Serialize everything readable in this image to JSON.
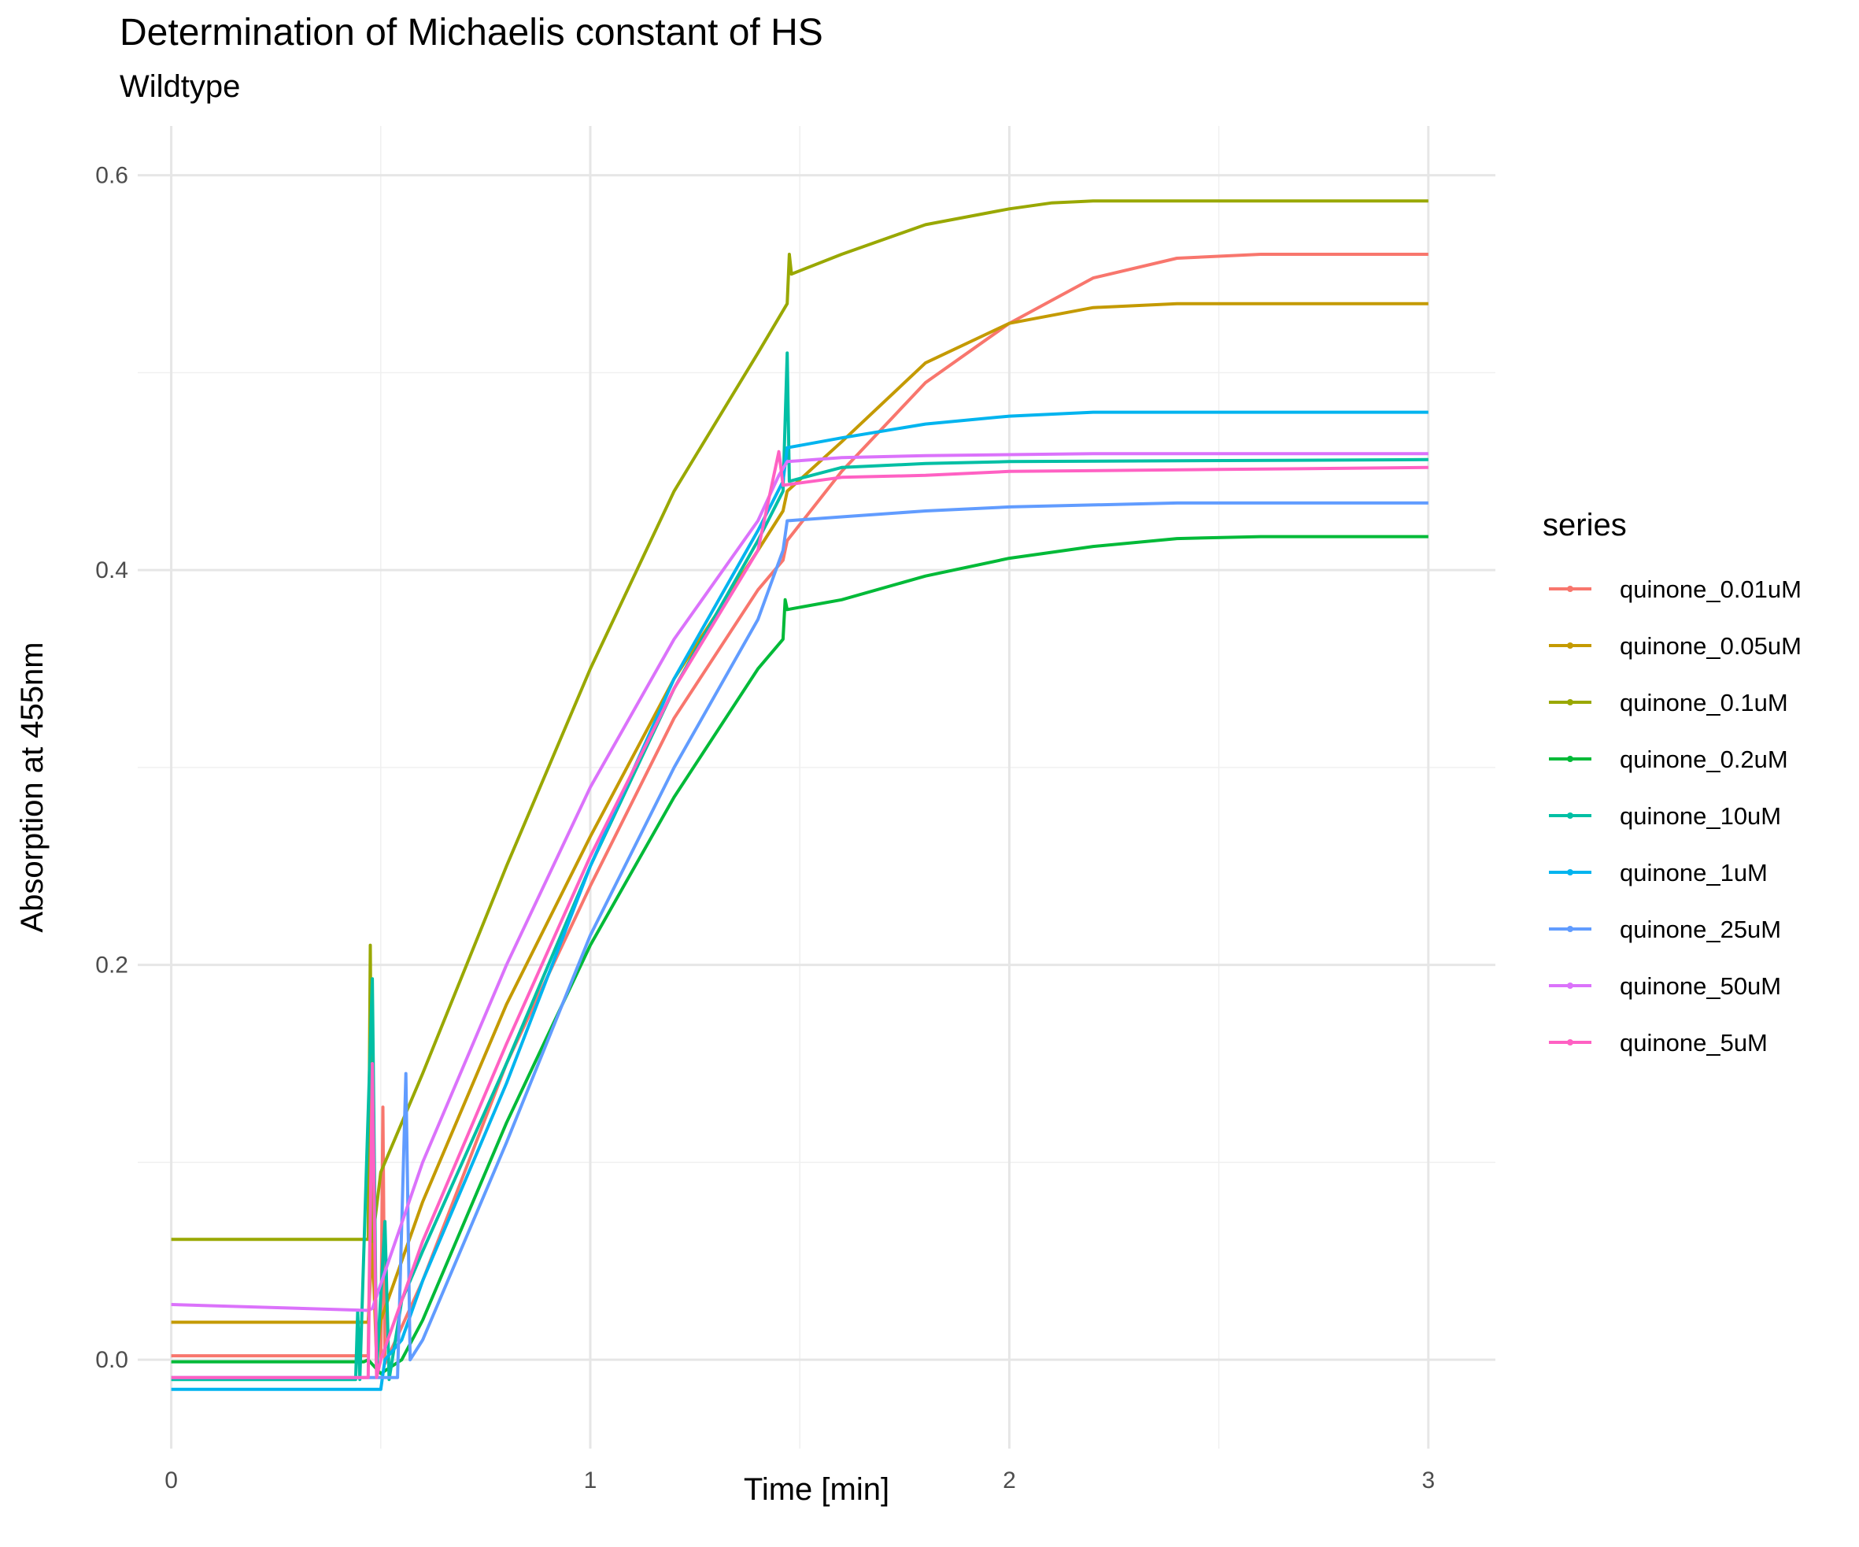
{
  "chart_data": {
    "type": "line",
    "title": "Determination of Michaelis constant of HS",
    "subtitle": "Wildtype",
    "xlabel": "Time [min]",
    "ylabel": "Absorption at 455nm",
    "xlim": [
      -0.08,
      3.16
    ],
    "ylim": [
      -0.045,
      0.625
    ],
    "x_ticks": [
      0,
      1,
      2,
      3
    ],
    "x_tick_labels": [
      "0",
      "1",
      "2",
      "3"
    ],
    "y_ticks": [
      0.0,
      0.2,
      0.4,
      0.6
    ],
    "y_tick_labels": [
      "0.0",
      "0.2",
      "0.4",
      "0.6"
    ],
    "grid": true,
    "legend_title": "series",
    "legend_position": "right",
    "series": [
      {
        "name": "quinone_0.01uM",
        "color": "#F8766D",
        "points": [
          [
            0,
            0.002
          ],
          [
            0.47,
            0.002
          ],
          [
            0.48,
            0.15
          ],
          [
            0.49,
            -0.008
          ],
          [
            0.5,
            0.0
          ],
          [
            0.505,
            0.128
          ],
          [
            0.51,
            -0.002
          ],
          [
            0.6,
            0.04
          ],
          [
            0.8,
            0.15
          ],
          [
            1.0,
            0.24
          ],
          [
            1.2,
            0.325
          ],
          [
            1.4,
            0.39
          ],
          [
            1.46,
            0.405
          ],
          [
            1.47,
            0.415
          ],
          [
            1.6,
            0.45
          ],
          [
            1.8,
            0.495
          ],
          [
            2.0,
            0.525
          ],
          [
            2.2,
            0.548
          ],
          [
            2.4,
            0.558
          ],
          [
            2.6,
            0.56
          ],
          [
            3.0,
            0.56
          ]
        ]
      },
      {
        "name": "quinone_0.05uM",
        "color": "#C49A00",
        "points": [
          [
            0,
            0.019
          ],
          [
            0.47,
            0.019
          ],
          [
            0.48,
            0.06
          ],
          [
            0.49,
            0.0
          ],
          [
            0.5,
            0.02
          ],
          [
            0.6,
            0.08
          ],
          [
            0.8,
            0.18
          ],
          [
            1.0,
            0.265
          ],
          [
            1.2,
            0.345
          ],
          [
            1.4,
            0.41
          ],
          [
            1.46,
            0.43
          ],
          [
            1.47,
            0.44
          ],
          [
            1.6,
            0.465
          ],
          [
            1.8,
            0.505
          ],
          [
            2.0,
            0.525
          ],
          [
            2.2,
            0.533
          ],
          [
            2.4,
            0.535
          ],
          [
            3.0,
            0.535
          ]
        ]
      },
      {
        "name": "quinone_0.1uM",
        "color": "#99A800",
        "points": [
          [
            0,
            0.061
          ],
          [
            0.47,
            0.061
          ],
          [
            0.475,
            0.21
          ],
          [
            0.48,
            0.06
          ],
          [
            0.5,
            0.095
          ],
          [
            0.6,
            0.145
          ],
          [
            0.8,
            0.25
          ],
          [
            1.0,
            0.35
          ],
          [
            1.2,
            0.44
          ],
          [
            1.4,
            0.51
          ],
          [
            1.47,
            0.535
          ],
          [
            1.475,
            0.56
          ],
          [
            1.48,
            0.55
          ],
          [
            1.6,
            0.56
          ],
          [
            1.8,
            0.575
          ],
          [
            2.0,
            0.583
          ],
          [
            2.1,
            0.586
          ],
          [
            2.2,
            0.587
          ],
          [
            3.0,
            0.587
          ]
        ]
      },
      {
        "name": "quinone_0.2uM",
        "color": "#00BA38",
        "points": [
          [
            0,
            -0.001
          ],
          [
            0.46,
            -0.001
          ],
          [
            0.47,
            0.0
          ],
          [
            0.5,
            -0.007
          ],
          [
            0.55,
            0.0
          ],
          [
            0.6,
            0.02
          ],
          [
            0.8,
            0.12
          ],
          [
            1.0,
            0.21
          ],
          [
            1.2,
            0.285
          ],
          [
            1.4,
            0.35
          ],
          [
            1.46,
            0.365
          ],
          [
            1.465,
            0.385
          ],
          [
            1.47,
            0.38
          ],
          [
            1.6,
            0.385
          ],
          [
            1.8,
            0.397
          ],
          [
            2.0,
            0.406
          ],
          [
            2.2,
            0.412
          ],
          [
            2.4,
            0.416
          ],
          [
            2.6,
            0.417
          ],
          [
            3.0,
            0.417
          ]
        ]
      },
      {
        "name": "quinone_10uM",
        "color": "#00BFA4",
        "points": [
          [
            0,
            -0.01
          ],
          [
            0.44,
            -0.01
          ],
          [
            0.445,
            0.025
          ],
          [
            0.45,
            -0.01
          ],
          [
            0.48,
            0.193
          ],
          [
            0.49,
            -0.005
          ],
          [
            0.51,
            0.07
          ],
          [
            0.52,
            -0.01
          ],
          [
            0.55,
            0.03
          ],
          [
            0.6,
            0.055
          ],
          [
            0.8,
            0.15
          ],
          [
            1.0,
            0.25
          ],
          [
            1.2,
            0.34
          ],
          [
            1.4,
            0.415
          ],
          [
            1.46,
            0.44
          ],
          [
            1.47,
            0.51
          ],
          [
            1.475,
            0.445
          ],
          [
            1.6,
            0.452
          ],
          [
            1.8,
            0.454
          ],
          [
            2.0,
            0.455
          ],
          [
            3.0,
            0.456
          ]
        ]
      },
      {
        "name": "quinone_1uM",
        "color": "#00B4EF",
        "points": [
          [
            0,
            -0.015
          ],
          [
            0.5,
            -0.015
          ],
          [
            0.51,
            0.0
          ],
          [
            0.55,
            0.01
          ],
          [
            0.6,
            0.04
          ],
          [
            0.8,
            0.14
          ],
          [
            1.0,
            0.25
          ],
          [
            1.2,
            0.345
          ],
          [
            1.4,
            0.42
          ],
          [
            1.46,
            0.445
          ],
          [
            1.47,
            0.462
          ],
          [
            1.6,
            0.467
          ],
          [
            1.8,
            0.474
          ],
          [
            2.0,
            0.478
          ],
          [
            2.2,
            0.48
          ],
          [
            3.0,
            0.48
          ]
        ]
      },
      {
        "name": "quinone_25uM",
        "color": "#619CFF",
        "points": [
          [
            0,
            -0.009
          ],
          [
            0.54,
            -0.009
          ],
          [
            0.56,
            0.145
          ],
          [
            0.57,
            0.0
          ],
          [
            0.6,
            0.01
          ],
          [
            0.8,
            0.11
          ],
          [
            1.0,
            0.215
          ],
          [
            1.2,
            0.3
          ],
          [
            1.4,
            0.375
          ],
          [
            1.46,
            0.41
          ],
          [
            1.47,
            0.425
          ],
          [
            1.6,
            0.427
          ],
          [
            1.8,
            0.43
          ],
          [
            2.0,
            0.432
          ],
          [
            2.4,
            0.434
          ],
          [
            3.0,
            0.434
          ]
        ]
      },
      {
        "name": "quinone_50uM",
        "color": "#DB72FB",
        "points": [
          [
            0,
            0.028
          ],
          [
            0.47,
            0.025
          ],
          [
            0.48,
            0.026
          ],
          [
            0.6,
            0.1
          ],
          [
            0.8,
            0.2
          ],
          [
            1.0,
            0.29
          ],
          [
            1.2,
            0.365
          ],
          [
            1.4,
            0.425
          ],
          [
            1.45,
            0.448
          ],
          [
            1.47,
            0.455
          ],
          [
            1.6,
            0.457
          ],
          [
            1.8,
            0.458
          ],
          [
            2.2,
            0.459
          ],
          [
            3.0,
            0.459
          ]
        ]
      },
      {
        "name": "quinone_5uM",
        "color": "#FF61C3",
        "points": [
          [
            0,
            -0.009
          ],
          [
            0.47,
            -0.009
          ],
          [
            0.48,
            0.15
          ],
          [
            0.49,
            -0.009
          ],
          [
            0.5,
            0.0
          ],
          [
            0.6,
            0.06
          ],
          [
            0.8,
            0.16
          ],
          [
            1.0,
            0.255
          ],
          [
            1.2,
            0.34
          ],
          [
            1.4,
            0.41
          ],
          [
            1.45,
            0.46
          ],
          [
            1.46,
            0.443
          ],
          [
            1.6,
            0.447
          ],
          [
            1.8,
            0.448
          ],
          [
            2.0,
            0.45
          ],
          [
            2.5,
            0.451
          ],
          [
            3.0,
            0.452
          ]
        ]
      }
    ]
  }
}
